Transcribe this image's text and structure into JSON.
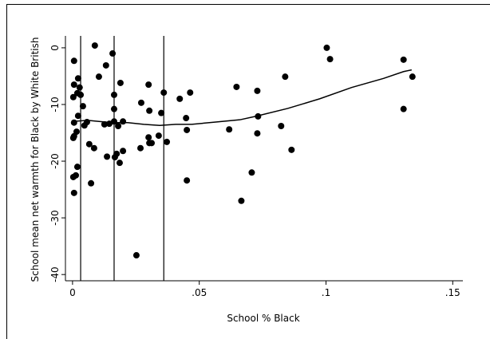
{
  "chart_data": {
    "type": "scatter",
    "xlabel": "School % Black",
    "ylabel": "School mean net warmth for Black by White British",
    "color": "#000000",
    "xlim": [
      -0.0028,
      0.154
    ],
    "ylim": [
      -41.1,
      2.1
    ],
    "xticks": [
      0,
      {
        "value": 0.05,
        "label": ".05"
      },
      {
        "value": 0.1,
        "label": ".1"
      },
      {
        "value": 0.15,
        "label": ".15"
      }
    ],
    "yticks": [
      0,
      -10,
      -20,
      -30,
      -40
    ],
    "vlines": [
      0.0032,
      0.0164,
      0.036
    ],
    "points": {
      "x": [
        0.0088,
        0.0158,
        0.0006,
        0.0132,
        0.0022,
        0.0104,
        0.0006,
        0.0189,
        0.03,
        0.0028,
        0.0019,
        0.0032,
        0.0003,
        0.0164,
        0.036,
        0.0423,
        0.0464,
        0.0271,
        0.0041,
        0.0164,
        0.0303,
        0.035,
        0.0022,
        0.0448,
        0.0057,
        0.0047,
        0.0126,
        0.0145,
        0.0164,
        0.0199,
        0.0006,
        0.018,
        0.0016,
        0.0003,
        0.0006,
        0.03,
        0.034,
        0.0451,
        0.0085,
        0.0268,
        0.0066,
        0.0372,
        0.0303,
        0.0312,
        0.0199,
        0.0174,
        0.0136,
        0.0167,
        0.0186,
        0.0019,
        0.0013,
        0.0003,
        0.0073,
        0.0451,
        0.0006,
        0.0252,
        0.0618,
        0.0647,
        0.0729,
        0.0732,
        0.0729,
        0.0707,
        0.0666,
        0.0839,
        0.0823,
        0.0864,
        0.1003,
        0.1016,
        0.1306,
        0.1341,
        0.1306
      ],
      "y": [
        0.4,
        -1,
        -2.3,
        -3.1,
        -5.4,
        -5.1,
        -6.5,
        -6.2,
        -6.5,
        -7.0,
        -8.0,
        -8.3,
        -8.7,
        -8.3,
        -7.9,
        -9.0,
        -7.9,
        -9.7,
        -10.3,
        -10.8,
        -11.1,
        -11.5,
        -12.0,
        -12.4,
        -13.1,
        -13.7,
        -13.5,
        -13.4,
        -13.0,
        -13.0,
        -13.2,
        -13.8,
        -14.8,
        -15.9,
        -15.6,
        -15.8,
        -15.5,
        -14.5,
        -17.7,
        -17.7,
        -17.0,
        -16.6,
        -16.8,
        -16.8,
        -18.2,
        -18.7,
        -19.2,
        -19.3,
        -20.3,
        -21.0,
        -22.5,
        -22.8,
        -23.9,
        -23.4,
        -25.6,
        -36.6,
        -14.4,
        -6.9,
        -7.6,
        -12.1,
        -15.1,
        -22.0,
        -27.0,
        -5.1,
        -13.8,
        -18.0,
        0,
        -2.0,
        -2.1,
        -5.1,
        -10.8
      ]
    },
    "fit_line": {
      "x": [
        0,
        0.006,
        0.0155,
        0.0218,
        0.0281,
        0.0344,
        0.0407,
        0.047,
        0.0565,
        0.066,
        0.0722,
        0.0849,
        0.0975,
        0.1101,
        0.1227,
        0.1306,
        0.1338
      ],
      "y": [
        -13.0,
        -12.8,
        -13.2,
        -13.2,
        -13.5,
        -13.7,
        -13.5,
        -13.5,
        -13.1,
        -12.7,
        -12.1,
        -10.7,
        -9.0,
        -7.0,
        -5.4,
        -4.2,
        -3.9
      ]
    }
  }
}
